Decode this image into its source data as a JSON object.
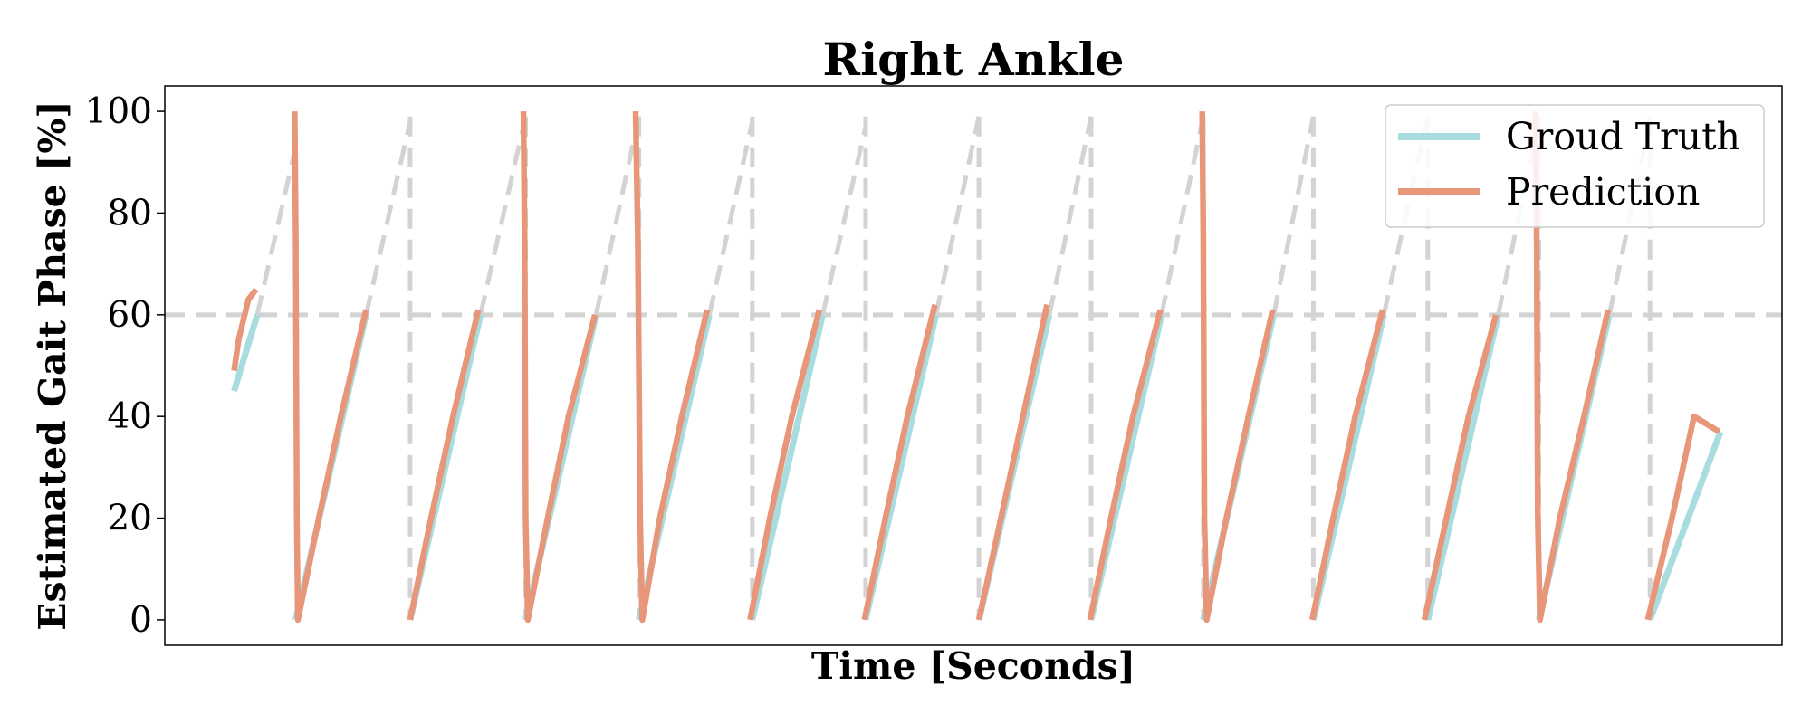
{
  "chart_data": {
    "type": "line",
    "title": "Right Ankle",
    "xlabel": "Time [Seconds]",
    "ylabel": "Estimated Gait Phase [%]",
    "ylim": [
      -5,
      105
    ],
    "xlim": [
      0,
      14.7
    ],
    "yticks": [
      {
        "value": 0,
        "label": "0"
      },
      {
        "value": 20,
        "label": "20"
      },
      {
        "value": 40,
        "label": "40"
      },
      {
        "value": 60,
        "label": "60"
      },
      {
        "value": 80,
        "label": "80"
      },
      {
        "value": 100,
        "label": "100"
      }
    ],
    "x_tick_labels_shown": false,
    "grid": false,
    "legend": {
      "placement": "top-right"
    },
    "reference_line": {
      "y": 60,
      "style": "dashed",
      "color": "#d3d3d3"
    },
    "series": [
      {
        "name": "Groud Truth",
        "color": "#a8dcdf",
        "x": [
          0.63,
          0.84,
          null,
          1.19,
          1.83,
          null,
          2.23,
          2.87,
          null,
          3.28,
          3.92,
          null,
          4.31,
          4.95,
          null,
          5.34,
          5.98,
          null,
          6.37,
          7.01,
          null,
          7.4,
          8.04,
          null,
          8.42,
          9.06,
          null,
          9.44,
          10.08,
          null,
          10.44,
          11.08,
          null,
          11.48,
          12.12,
          null,
          12.49,
          13.13,
          null,
          13.5,
          14.14
        ],
        "y": [
          45,
          60,
          null,
          0,
          60,
          null,
          0,
          60,
          null,
          0,
          60,
          null,
          0,
          60,
          null,
          0,
          60,
          null,
          0,
          60,
          null,
          0,
          60,
          null,
          0,
          60,
          null,
          0,
          60,
          null,
          0,
          60,
          null,
          0,
          60,
          null,
          0,
          60,
          null,
          0,
          37
        ]
      },
      {
        "name": "Prediction",
        "color": "#e8967a",
        "x": [
          0.63,
          0.67,
          0.76,
          0.83,
          null,
          1.18,
          1.19,
          1.2,
          1.21,
          1.4,
          1.6,
          1.83,
          null,
          2.23,
          2.42,
          2.62,
          2.85,
          null,
          3.26,
          3.27,
          3.28,
          3.3,
          3.48,
          3.67,
          3.91,
          null,
          4.28,
          4.3,
          4.32,
          4.34,
          4.5,
          4.7,
          4.93,
          null,
          5.32,
          5.5,
          5.7,
          5.95,
          null,
          6.36,
          6.55,
          6.75,
          7.0,
          null,
          7.4,
          7.6,
          7.8,
          8.02,
          null,
          8.41,
          8.6,
          8.8,
          9.05,
          null,
          9.43,
          9.44,
          9.45,
          9.47,
          9.65,
          9.85,
          10.07,
          null,
          10.43,
          10.62,
          10.82,
          11.07,
          null,
          11.45,
          11.65,
          11.85,
          12.1,
          null,
          12.46,
          12.47,
          12.48,
          12.5,
          12.68,
          12.9,
          13.12,
          null,
          13.48,
          13.7,
          13.9,
          14.13
        ],
        "y": [
          49,
          55,
          63,
          65,
          null,
          100,
          75,
          20,
          0,
          20,
          40,
          61,
          null,
          0,
          20,
          40,
          61,
          null,
          100,
          75,
          20,
          0,
          20,
          40,
          60,
          null,
          100,
          75,
          20,
          0,
          20,
          40,
          61,
          null,
          0,
          20,
          40,
          61,
          null,
          0,
          20,
          40,
          62,
          null,
          0,
          20,
          40,
          62,
          null,
          0,
          20,
          40,
          61,
          null,
          100,
          75,
          20,
          0,
          20,
          40,
          61,
          null,
          0,
          20,
          40,
          61,
          null,
          0,
          20,
          40,
          60,
          null,
          100,
          75,
          20,
          0,
          20,
          40,
          61,
          null,
          0,
          20,
          40,
          37
        ]
      }
    ],
    "reference_cycles": {
      "color": "#d3d3d3",
      "style": "dashed",
      "segments": [
        {
          "x0": 0.84,
          "y0": 60,
          "x1": 1.19,
          "y1": 93
        },
        {
          "x0": 1.83,
          "y0": 60,
          "x1": 2.23,
          "y1": 98
        },
        {
          "x0": 2.87,
          "y0": 60,
          "x1": 3.28,
          "y1": 99
        },
        {
          "x0": 3.92,
          "y0": 60,
          "x1": 4.31,
          "y1": 99
        },
        {
          "x0": 4.95,
          "y0": 60,
          "x1": 5.34,
          "y1": 98
        },
        {
          "x0": 5.98,
          "y0": 60,
          "x1": 6.37,
          "y1": 97
        },
        {
          "x0": 7.01,
          "y0": 60,
          "x1": 7.4,
          "y1": 99
        },
        {
          "x0": 8.04,
          "y0": 60,
          "x1": 8.42,
          "y1": 99
        },
        {
          "x0": 9.06,
          "y0": 60,
          "x1": 9.44,
          "y1": 99
        },
        {
          "x0": 10.08,
          "y0": 60,
          "x1": 10.44,
          "y1": 99
        },
        {
          "x0": 11.08,
          "y0": 60,
          "x1": 11.48,
          "y1": 99
        },
        {
          "x0": 12.12,
          "y0": 60,
          "x1": 12.49,
          "y1": 98
        },
        {
          "x0": 13.13,
          "y0": 60,
          "x1": 13.5,
          "y1": 98
        }
      ],
      "drops": [
        2.23,
        3.28,
        4.31,
        5.34,
        6.37,
        7.4,
        8.42,
        9.44,
        10.44,
        11.48,
        12.49,
        13.5
      ]
    }
  }
}
